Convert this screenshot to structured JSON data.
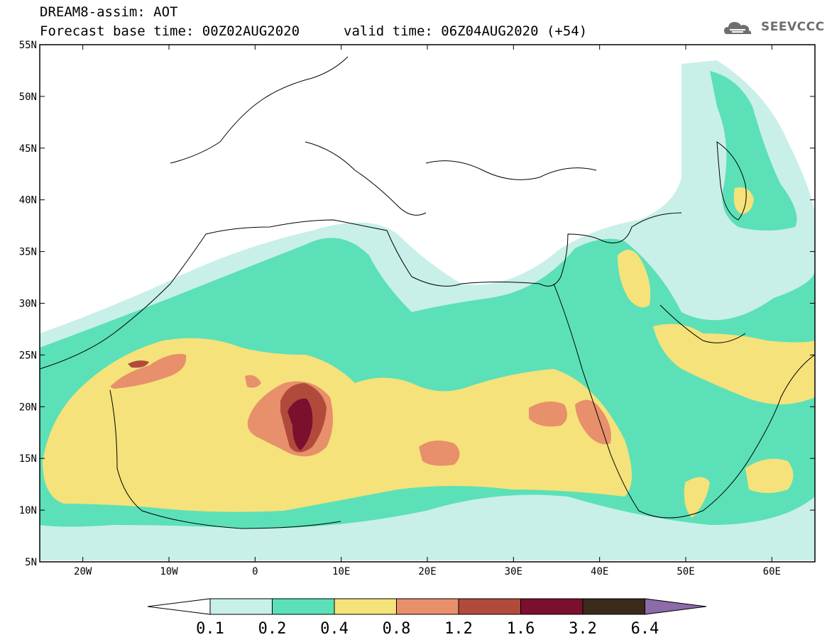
{
  "header": {
    "title": "DREAM8-assim: AOT",
    "base_time": "Forecast base time: 00Z02AUG2020",
    "valid_time": "valid time: 06Z04AUG2020 (+54)",
    "logo_text": "SEEVCCC",
    "logo_icon": "cloud-icon"
  },
  "map": {
    "type": "filled-contour-map",
    "lon_range": [
      -25,
      65
    ],
    "lat_range": [
      5,
      55
    ],
    "lat_labels": [
      "55N",
      "50N",
      "45N",
      "40N",
      "35N",
      "30N",
      "25N",
      "20N",
      "15N",
      "10N",
      "5N"
    ],
    "lon_labels": [
      "20W",
      "10W",
      "0",
      "10E",
      "20E",
      "30E",
      "40E",
      "50E",
      "60E"
    ]
  },
  "colorbar": {
    "labels": [
      "0.1",
      "0.2",
      "0.4",
      "0.8",
      "1.2",
      "1.6",
      "3.2",
      "6.4"
    ],
    "colors": [
      "#ffffff",
      "#c8f0e8",
      "#5ce0b8",
      "#f5e27a",
      "#e88f6c",
      "#b24a3c",
      "#7a0f2e",
      "#3a2a1a",
      "#8c6ba8"
    ]
  }
}
